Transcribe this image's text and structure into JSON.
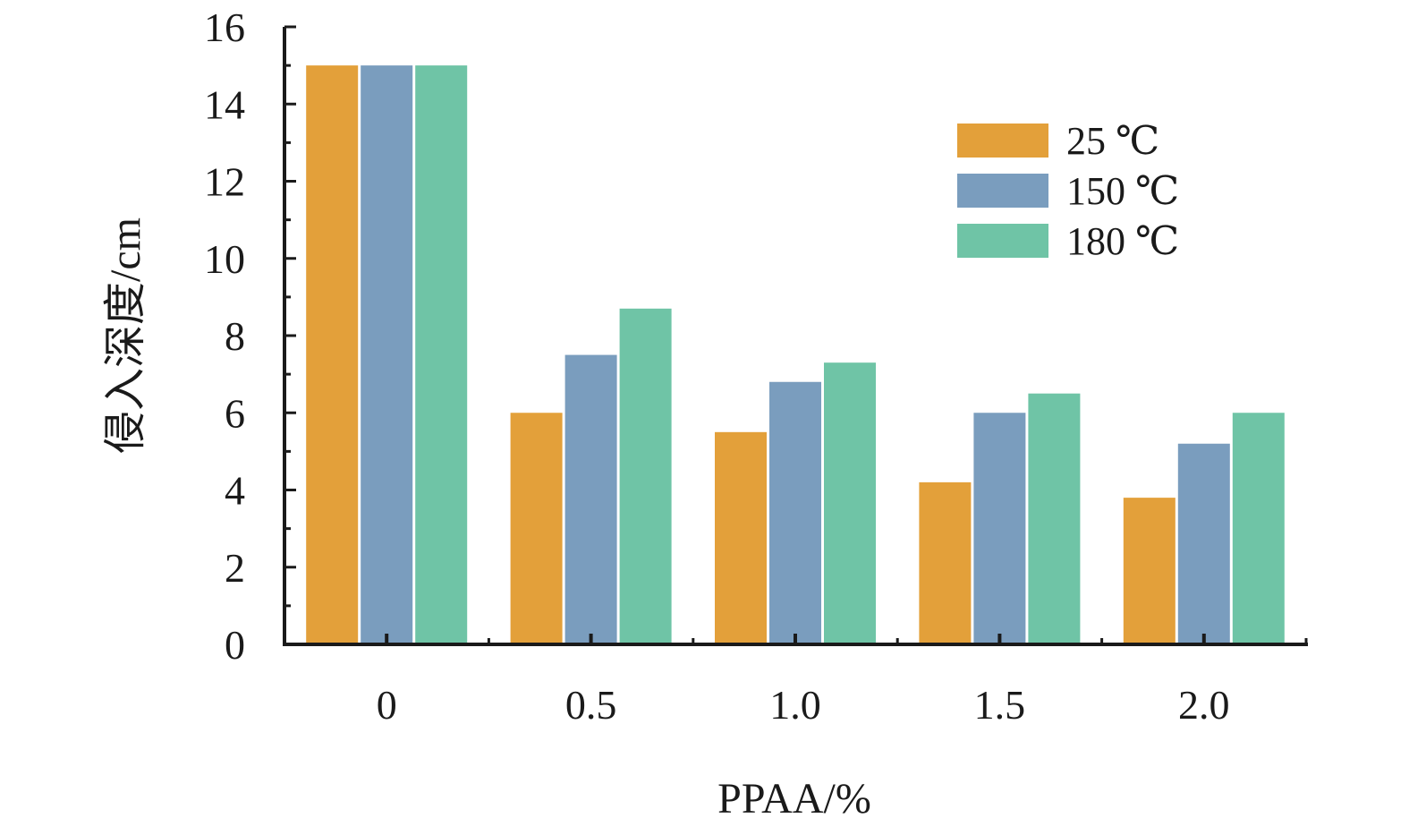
{
  "chart_data": {
    "type": "bar",
    "title": "",
    "xlabel": "PPAA/%",
    "ylabel": "侵入深度/cm",
    "categories": [
      "0",
      "0.5",
      "1.0",
      "1.5",
      "2.0"
    ],
    "series": [
      {
        "name": "25 ℃",
        "color": "#E3A03A",
        "values": [
          15.0,
          6.0,
          5.5,
          4.2,
          3.8
        ]
      },
      {
        "name": "150 ℃",
        "color": "#7A9DBE",
        "values": [
          15.0,
          7.5,
          6.8,
          6.0,
          5.2
        ]
      },
      {
        "name": "180 ℃",
        "color": "#6FC4A6",
        "values": [
          15.0,
          8.7,
          7.3,
          6.5,
          6.0
        ]
      }
    ],
    "ylim": [
      0,
      16
    ],
    "yticks": [
      "0",
      "2",
      "4",
      "6",
      "8",
      "10",
      "12",
      "14",
      "16"
    ],
    "grid": false,
    "legend_position": "top-right"
  }
}
